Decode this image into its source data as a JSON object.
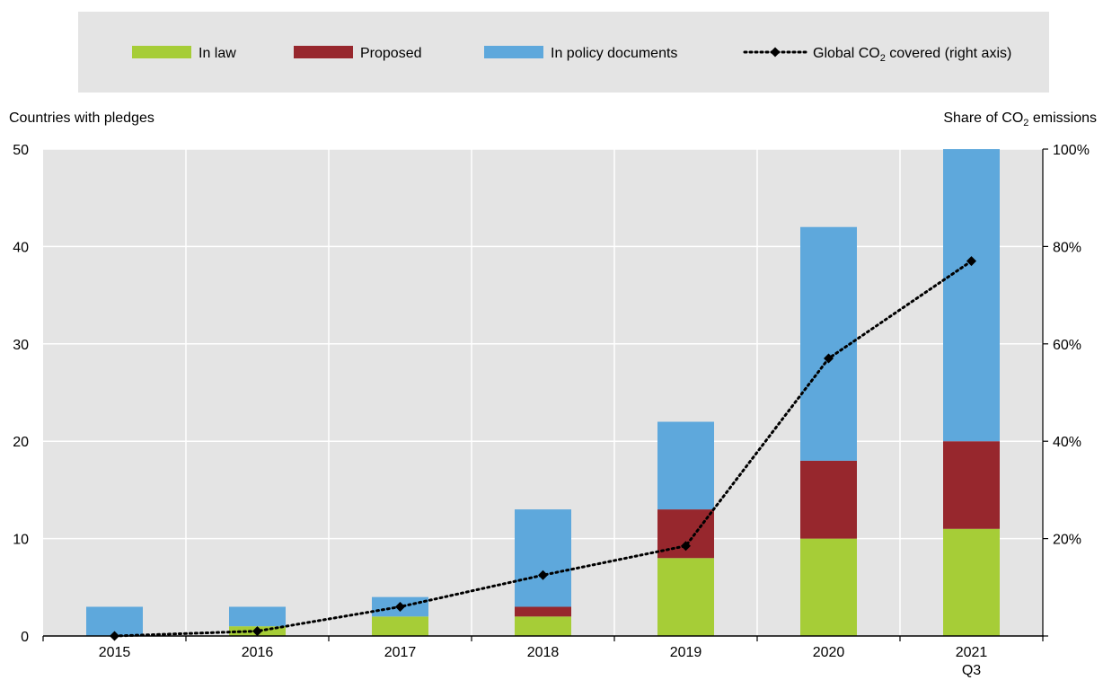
{
  "chart_data": {
    "type": "bar",
    "stacked": true,
    "categories": [
      "2015",
      "2016",
      "2017",
      "2018",
      "2019",
      "2020",
      "2021\nQ3"
    ],
    "category_lines": [
      [
        "2015"
      ],
      [
        "2016"
      ],
      [
        "2017"
      ],
      [
        "2018"
      ],
      [
        "2019"
      ],
      [
        "2020"
      ],
      [
        "2021",
        "Q3"
      ]
    ],
    "series": [
      {
        "name": "In law",
        "color": "#a6cd37",
        "values": [
          0,
          1,
          2,
          2,
          8,
          10,
          11
        ]
      },
      {
        "name": "Proposed",
        "color": "#97272d",
        "values": [
          0,
          0,
          0,
          1,
          5,
          8,
          9
        ]
      },
      {
        "name": "In policy documents",
        "color": "#5ea8dc",
        "values": [
          3,
          2,
          2,
          10,
          9,
          24,
          30
        ]
      }
    ],
    "line_series": {
      "name_main": "Global CO",
      "name_sub": "2",
      "name_suffix": " covered (right axis)",
      "color": "#000000",
      "axis": "right",
      "values": [
        0,
        1,
        6,
        12.5,
        18.5,
        57,
        77
      ]
    },
    "left_axis": {
      "label": "Countries with pledges",
      "ylim": [
        0,
        50
      ],
      "ticks": [
        0,
        10,
        20,
        30,
        40,
        50
      ]
    },
    "right_axis": {
      "label_main": "Share of CO",
      "label_sub": "2",
      "label_suffix": " emissions",
      "ylim": [
        0,
        100
      ],
      "ticks": [
        20,
        40,
        60,
        80,
        100
      ],
      "tick_suffix": "%"
    },
    "grid": true,
    "legend_position": "top"
  }
}
